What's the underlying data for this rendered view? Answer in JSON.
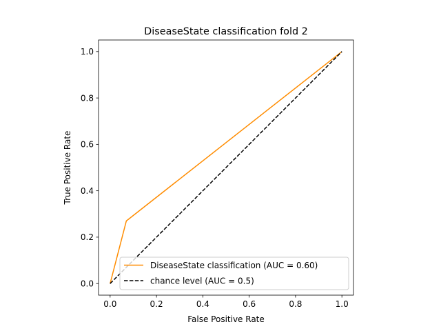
{
  "chart_data": {
    "type": "line",
    "title": "DiseaseState classification fold 2",
    "xlabel": "False Positive Rate",
    "ylabel": "True Positive Rate",
    "xlim": [
      -0.05,
      1.05
    ],
    "ylim": [
      -0.05,
      1.05
    ],
    "x_ticks": [
      "0.0",
      "0.2",
      "0.4",
      "0.6",
      "0.8",
      "1.0"
    ],
    "y_ticks": [
      "0.0",
      "0.2",
      "0.4",
      "0.6",
      "0.8",
      "1.0"
    ],
    "grid": false,
    "legend_position": "lower-right",
    "series": [
      {
        "name": "DiseaseState classification (AUC = 0.60)",
        "x": [
          0.0,
          0.07,
          1.0
        ],
        "y": [
          0.0,
          0.27,
          1.0
        ],
        "color": "#ff8c00",
        "style": "solid"
      },
      {
        "name": "chance level (AUC = 0.5)",
        "x": [
          0.0,
          1.0
        ],
        "y": [
          0.0,
          1.0
        ],
        "color": "#000000",
        "style": "dashed"
      }
    ]
  }
}
